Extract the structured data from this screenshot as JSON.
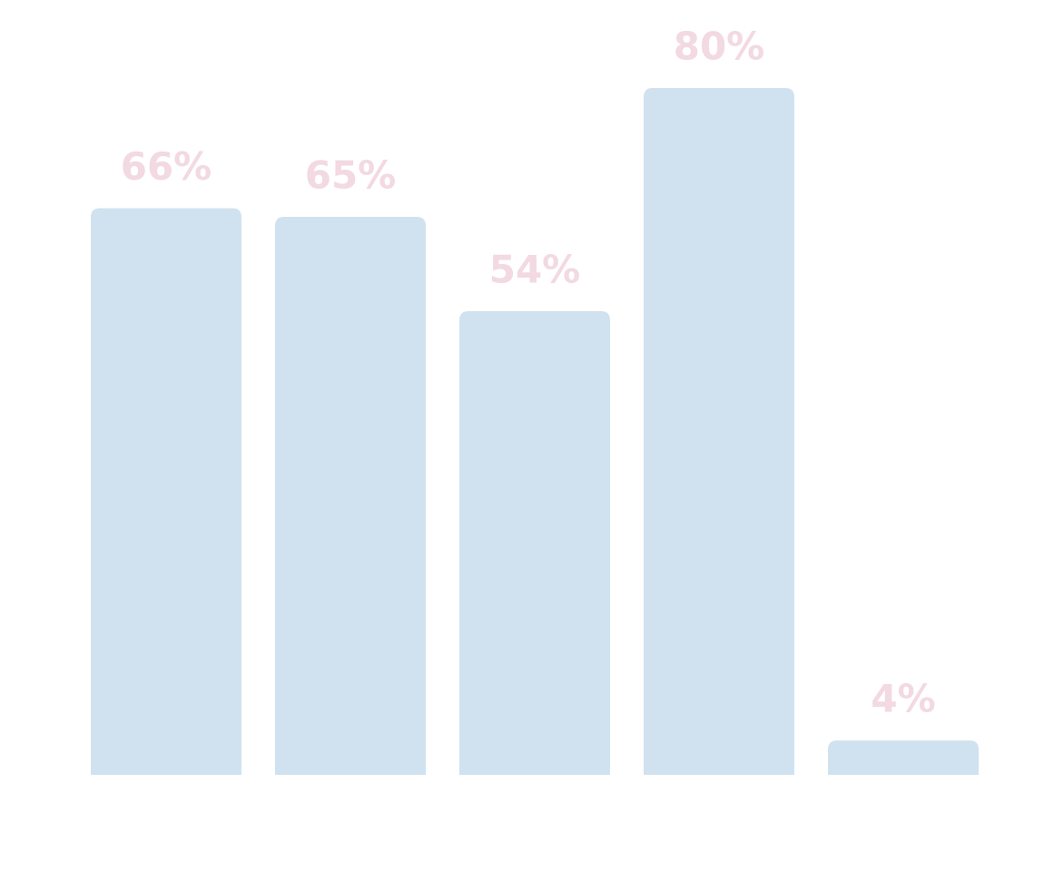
{
  "chart_data": {
    "type": "bar",
    "categories": [
      null,
      null,
      null,
      null,
      null
    ],
    "values": [
      66,
      65,
      54,
      80,
      4
    ],
    "value_labels": [
      "66%",
      "65%",
      "54%",
      "80%",
      "4%"
    ],
    "color": "#d0e2ef",
    "label_color": "#f2d9e2"
  }
}
